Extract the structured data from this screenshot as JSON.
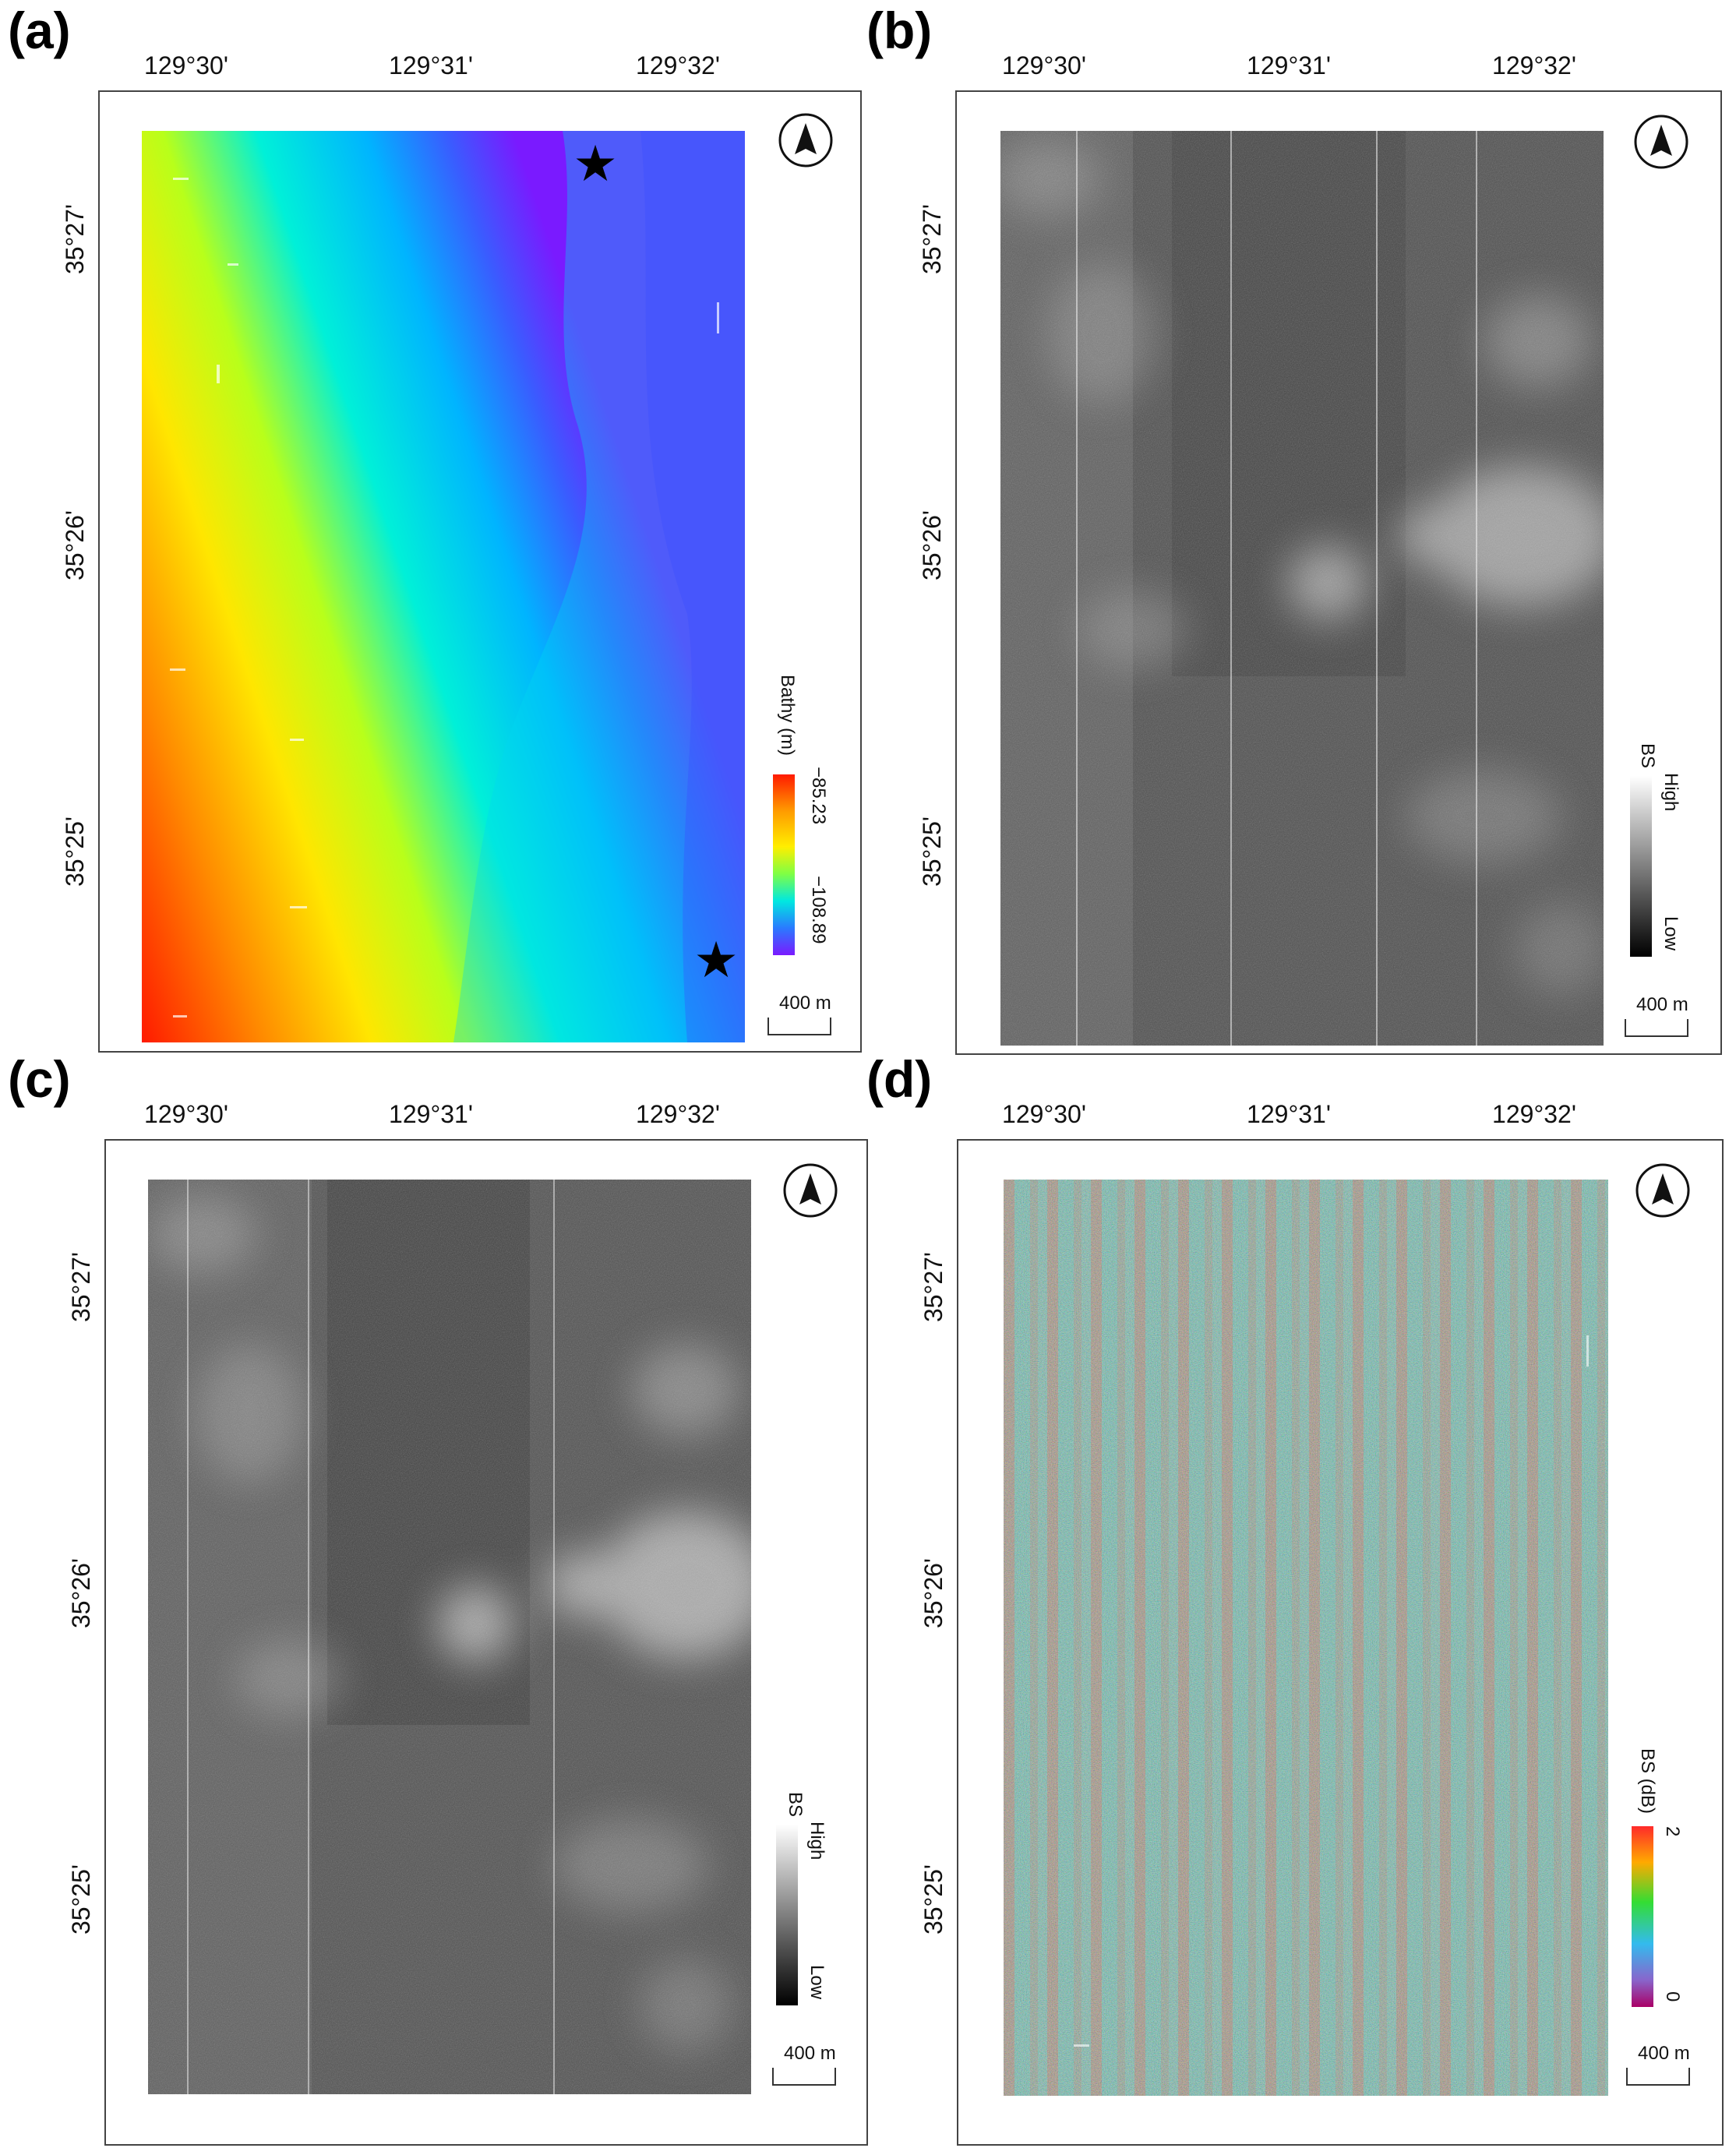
{
  "panels": {
    "a": {
      "letter": "(a)",
      "lon_ticks": [
        "129°30'",
        "129°31'",
        "129°32'"
      ],
      "lat_ticks": [
        "35°27'",
        "35°26'",
        "35°25'"
      ],
      "legend": {
        "title": "Bathy (m)",
        "max": "−85.23",
        "min": "−108.89",
        "colormap": [
          "#ff0000",
          "#ff8800",
          "#ffee00",
          "#aaff00",
          "#00eebb",
          "#00aaff",
          "#4444ff",
          "#8800ff"
        ]
      },
      "scale_label": "400 m",
      "north_icon": "north-arrow-icon",
      "markers": [
        "star-icon",
        "star-icon"
      ],
      "marker_glyph": "★"
    },
    "b": {
      "letter": "(b)",
      "lon_ticks": [
        "129°30'",
        "129°31'",
        "129°32'"
      ],
      "lat_ticks": [
        "35°27'",
        "35°26'",
        "35°25'"
      ],
      "legend": {
        "title": "BS",
        "high": "High",
        "low": "Low"
      },
      "scale_label": "400 m",
      "north_icon": "north-arrow-icon"
    },
    "c": {
      "letter": "(c)",
      "lon_ticks": [
        "129°30'",
        "129°31'",
        "129°32'"
      ],
      "lat_ticks": [
        "35°27'",
        "35°26'",
        "35°25'"
      ],
      "legend": {
        "title": "BS",
        "high": "High",
        "low": "Low"
      },
      "scale_label": "400 m",
      "north_icon": "north-arrow-icon"
    },
    "d": {
      "letter": "(d)",
      "lon_ticks": [
        "129°30'",
        "129°31'",
        "129°32'"
      ],
      "lat_ticks": [
        "35°27'",
        "35°26'",
        "35°25'"
      ],
      "legend": {
        "title": "BS (dB)",
        "max": "2",
        "min": "0",
        "colormap": [
          "#ff2a2a",
          "#ffaa00",
          "#33dd33",
          "#33bbee",
          "#8866cc",
          "#aa0066"
        ]
      },
      "scale_label": "400 m",
      "north_icon": "north-arrow-icon"
    }
  }
}
